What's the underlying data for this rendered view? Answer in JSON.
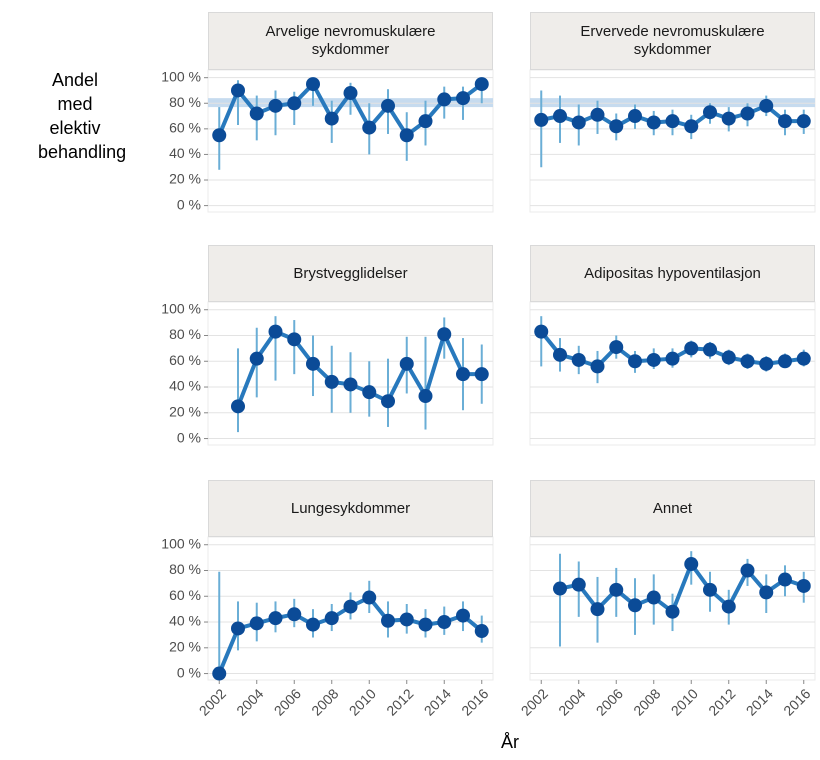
{
  "ylabel": "Andel med elektiv behandling",
  "xlabel": "År",
  "chart_data": [
    {
      "type": "line",
      "title": "Arvelige nevromuskulære sykdommer",
      "x": [
        2002,
        2003,
        2004,
        2005,
        2006,
        2007,
        2008,
        2009,
        2010,
        2011,
        2012,
        2013,
        2014,
        2015,
        2016
      ],
      "values": [
        55,
        90,
        72,
        78,
        80,
        95,
        68,
        88,
        61,
        78,
        55,
        66,
        83,
        84,
        95
      ],
      "lower": [
        28,
        63,
        51,
        55,
        63,
        78,
        49,
        71,
        40,
        56,
        35,
        47,
        68,
        67,
        80
      ],
      "upper": [
        77,
        98,
        86,
        90,
        89,
        100,
        82,
        96,
        80,
        91,
        73,
        82,
        93,
        93,
        99
      ],
      "target_band": [
        77,
        84
      ],
      "xlim": [
        2001.4,
        2016.6
      ],
      "xticks": [
        2002,
        2004,
        2006,
        2008,
        2010,
        2012,
        2014,
        2016
      ],
      "ylim": [
        -5,
        106
      ],
      "yticks": [
        {
          "value": 0,
          "label": "0 %"
        },
        {
          "value": 20,
          "label": "20 %"
        },
        {
          "value": 40,
          "label": "40 %"
        },
        {
          "value": 60,
          "label": "60 %"
        },
        {
          "value": 80,
          "label": "80 %"
        },
        {
          "value": 100,
          "label": "100 %"
        }
      ],
      "grid": true,
      "color": "#2879bd",
      "point_color": "#0b4b97",
      "error_color": "#6aaed6",
      "band_color": "#c6dbef"
    },
    {
      "type": "line",
      "title": "Ervervede nevromuskulære sykdommer",
      "x": [
        2002,
        2003,
        2004,
        2005,
        2006,
        2007,
        2008,
        2009,
        2010,
        2011,
        2012,
        2013,
        2014,
        2015,
        2016
      ],
      "values": [
        67,
        70,
        65,
        71,
        62,
        70,
        65,
        66,
        62,
        73,
        68,
        72,
        78,
        66,
        66
      ],
      "lower": [
        30,
        49,
        47,
        56,
        51,
        60,
        55,
        55,
        52,
        64,
        58,
        62,
        70,
        55,
        56
      ],
      "upper": [
        90,
        86,
        79,
        82,
        72,
        79,
        74,
        75,
        71,
        80,
        77,
        80,
        86,
        75,
        75
      ],
      "target_band": [
        77,
        84
      ],
      "xlim": [
        2001.4,
        2016.6
      ],
      "xticks": [
        2002,
        2004,
        2006,
        2008,
        2010,
        2012,
        2014,
        2016
      ],
      "ylim": [
        -5,
        106
      ],
      "yticks": [
        {
          "value": 0,
          "label": "0 %"
        },
        {
          "value": 20,
          "label": "20 %"
        },
        {
          "value": 40,
          "label": "40 %"
        },
        {
          "value": 60,
          "label": "60 %"
        },
        {
          "value": 80,
          "label": "80 %"
        },
        {
          "value": 100,
          "label": "100 %"
        }
      ],
      "grid": true,
      "color": "#2879bd",
      "point_color": "#0b4b97",
      "error_color": "#6aaed6",
      "band_color": "#c6dbef"
    },
    {
      "type": "line",
      "title": "Brystvegglidelser",
      "x": [
        2002,
        2003,
        2004,
        2005,
        2006,
        2007,
        2008,
        2009,
        2010,
        2011,
        2012,
        2013,
        2014,
        2015,
        2016
      ],
      "values": [
        null,
        25,
        62,
        83,
        77,
        58,
        44,
        42,
        36,
        29,
        58,
        33,
        81,
        50,
        50
      ],
      "lower": [
        null,
        5,
        32,
        45,
        50,
        33,
        20,
        20,
        17,
        9,
        35,
        7,
        62,
        22,
        27
      ],
      "upper": [
        null,
        70,
        86,
        95,
        92,
        80,
        72,
        67,
        60,
        62,
        79,
        79,
        94,
        78,
        73
      ],
      "xlim": [
        2001.4,
        2016.6
      ],
      "xticks": [
        2002,
        2004,
        2006,
        2008,
        2010,
        2012,
        2014,
        2016
      ],
      "ylim": [
        -5,
        106
      ],
      "yticks": [
        {
          "value": 0,
          "label": "0 %"
        },
        {
          "value": 20,
          "label": "20 %"
        },
        {
          "value": 40,
          "label": "40 %"
        },
        {
          "value": 60,
          "label": "60 %"
        },
        {
          "value": 80,
          "label": "80 %"
        },
        {
          "value": 100,
          "label": "100 %"
        }
      ],
      "grid": true,
      "color": "#2879bd",
      "point_color": "#0b4b97",
      "error_color": "#6aaed6"
    },
    {
      "type": "line",
      "title": "Adipositas hypoventilasjon",
      "x": [
        2002,
        2003,
        2004,
        2005,
        2006,
        2007,
        2008,
        2009,
        2010,
        2011,
        2012,
        2013,
        2014,
        2015,
        2016
      ],
      "values": [
        83,
        65,
        61,
        56,
        71,
        60,
        61,
        62,
        70,
        69,
        63,
        60,
        58,
        60,
        62
      ],
      "lower": [
        56,
        52,
        50,
        43,
        62,
        51,
        54,
        55,
        63,
        62,
        57,
        54,
        52,
        55,
        56
      ],
      "upper": [
        95,
        78,
        72,
        68,
        80,
        68,
        70,
        70,
        76,
        75,
        69,
        66,
        64,
        66,
        69
      ],
      "xlim": [
        2001.4,
        2016.6
      ],
      "xticks": [
        2002,
        2004,
        2006,
        2008,
        2010,
        2012,
        2014,
        2016
      ],
      "ylim": [
        -5,
        106
      ],
      "yticks": [
        {
          "value": 0,
          "label": "0 %"
        },
        {
          "value": 20,
          "label": "20 %"
        },
        {
          "value": 40,
          "label": "40 %"
        },
        {
          "value": 60,
          "label": "60 %"
        },
        {
          "value": 80,
          "label": "80 %"
        },
        {
          "value": 100,
          "label": "100 %"
        }
      ],
      "grid": true,
      "color": "#2879bd",
      "point_color": "#0b4b97",
      "error_color": "#6aaed6"
    },
    {
      "type": "line",
      "title": "Lungesykdommer",
      "x": [
        2002,
        2003,
        2004,
        2005,
        2006,
        2007,
        2008,
        2009,
        2010,
        2011,
        2012,
        2013,
        2014,
        2015,
        2016
      ],
      "values": [
        0,
        35,
        39,
        43,
        46,
        38,
        43,
        52,
        59,
        41,
        42,
        38,
        40,
        45,
        33
      ],
      "lower": [
        0,
        18,
        25,
        32,
        36,
        28,
        33,
        42,
        47,
        28,
        31,
        28,
        30,
        33,
        24
      ],
      "upper": [
        79,
        56,
        55,
        56,
        58,
        50,
        54,
        63,
        72,
        56,
        54,
        50,
        52,
        56,
        45
      ],
      "xlim": [
        2001.4,
        2016.6
      ],
      "xticks": [
        2002,
        2004,
        2006,
        2008,
        2010,
        2012,
        2014,
        2016
      ],
      "ylim": [
        -5,
        106
      ],
      "yticks": [
        {
          "value": 0,
          "label": "0 %"
        },
        {
          "value": 20,
          "label": "20 %"
        },
        {
          "value": 40,
          "label": "40 %"
        },
        {
          "value": 60,
          "label": "60 %"
        },
        {
          "value": 80,
          "label": "80 %"
        },
        {
          "value": 100,
          "label": "100 %"
        }
      ],
      "grid": true,
      "color": "#2879bd",
      "point_color": "#0b4b97",
      "error_color": "#6aaed6"
    },
    {
      "type": "line",
      "title": "Annet",
      "x": [
        2002,
        2003,
        2004,
        2005,
        2006,
        2007,
        2008,
        2009,
        2010,
        2011,
        2012,
        2013,
        2014,
        2015,
        2016
      ],
      "values": [
        null,
        66,
        69,
        50,
        65,
        53,
        59,
        48,
        85,
        65,
        52,
        80,
        63,
        73,
        68
      ],
      "lower": [
        null,
        21,
        44,
        24,
        44,
        30,
        38,
        33,
        69,
        48,
        38,
        68,
        47,
        60,
        55
      ],
      "upper": [
        null,
        93,
        87,
        75,
        82,
        74,
        77,
        62,
        95,
        79,
        65,
        89,
        77,
        84,
        79
      ],
      "xlim": [
        2001.4,
        2016.6
      ],
      "xticks": [
        2002,
        2004,
        2006,
        2008,
        2010,
        2012,
        2014,
        2016
      ],
      "ylim": [
        -5,
        106
      ],
      "yticks": [
        {
          "value": 0,
          "label": "0 %"
        },
        {
          "value": 20,
          "label": "20 %"
        },
        {
          "value": 40,
          "label": "40 %"
        },
        {
          "value": 60,
          "label": "60 %"
        },
        {
          "value": 80,
          "label": "80 %"
        },
        {
          "value": 100,
          "label": "100 %"
        }
      ],
      "grid": true,
      "color": "#2879bd",
      "point_color": "#0b4b97",
      "error_color": "#6aaed6"
    }
  ]
}
